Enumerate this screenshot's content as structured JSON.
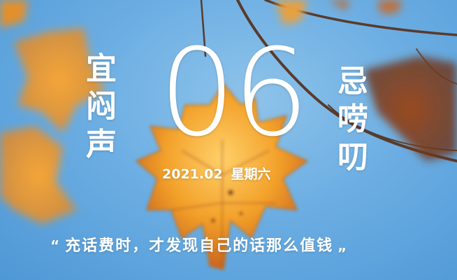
{
  "calendar": {
    "yi_chars": [
      "宜",
      "闷",
      "声"
    ],
    "ji_chars": [
      "忌",
      "唠",
      "叨"
    ],
    "day": "06",
    "date": "2021.02",
    "weekday": "星期六",
    "quote_open": "“",
    "quote_text": "充话费时，才发现自己的话那么值钱",
    "quote_close": "„"
  },
  "colors": {
    "sky": "#6caee3",
    "leaf_orange": "#f0a02a",
    "leaf_dark": "#b0561e",
    "text": "#ffffff"
  }
}
